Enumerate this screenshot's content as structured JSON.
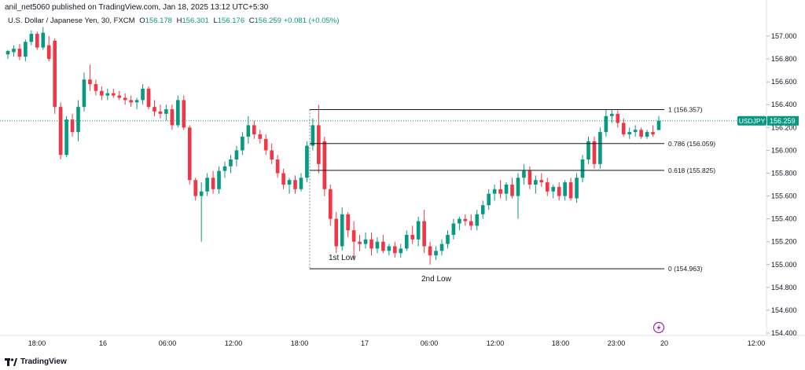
{
  "header": {
    "published": "anil_net5060 published on TradingView.com, Jan 18, 2025 13:12 UTC+5:30",
    "symbol": "U.S. Dollar / Japanese Yen, 30, FXCM",
    "open_label": "O",
    "open": "156.178",
    "high_label": "H",
    "high": "156.301",
    "low_label": "L",
    "low": "156.176",
    "close_label": "C",
    "close": "156.259",
    "change": "+0.081 (+0.05%)"
  },
  "footer": {
    "brand": "TradingView",
    "logo_icon": "tradingview-logo-icon"
  },
  "colors": {
    "up": "#089981",
    "down": "#f23645",
    "price_line": "#089981",
    "grid": "#f0f3fa",
    "fib": "#131722",
    "flash": "#9c27b0"
  },
  "chart_data": {
    "type": "candlestick",
    "symbol_badge": "USDJPY",
    "last_price": "156.259",
    "ylim": [
      154.4,
      157.1
    ],
    "y_ticks": [
      "157.000",
      "156.800",
      "156.600",
      "156.400",
      "156.200",
      "156.000",
      "155.800",
      "155.600",
      "155.400",
      "155.200",
      "155.000",
      "154.800",
      "154.600",
      "154.400"
    ],
    "x_ticks": [
      "18:00",
      "16",
      "06:00",
      "12:00",
      "18:00",
      "17",
      "06:00",
      "12:00",
      "18:00",
      "23:00",
      "20",
      "12:00"
    ],
    "fib_levels": [
      {
        "label": "1 (156.357)",
        "value": 156.357
      },
      {
        "label": "0.786 (156.059)",
        "value": 156.059
      },
      {
        "label": "0.618 (155.825)",
        "value": 155.825
      },
      {
        "label": "0 (154.963)",
        "value": 154.963
      }
    ],
    "annotations": [
      {
        "text": "1st Low",
        "price": 155.07
      },
      {
        "text": "2nd Low",
        "price": 154.87
      }
    ],
    "candles": [
      [
        156.84,
        156.88,
        156.8,
        156.87
      ],
      [
        156.86,
        156.92,
        156.82,
        156.89
      ],
      [
        156.89,
        156.93,
        156.79,
        156.82
      ],
      [
        156.82,
        156.97,
        156.78,
        156.95
      ],
      [
        156.95,
        157.05,
        156.92,
        157.02
      ],
      [
        157.02,
        157.04,
        156.88,
        156.9
      ],
      [
        156.9,
        157.08,
        156.88,
        157.03
      ],
      [
        156.92,
        157.0,
        156.78,
        156.8
      ],
      [
        156.96,
        156.98,
        156.32,
        156.38
      ],
      [
        156.38,
        156.42,
        155.92,
        155.96
      ],
      [
        155.96,
        156.3,
        155.94,
        156.27
      ],
      [
        156.27,
        156.32,
        156.12,
        156.16
      ],
      [
        156.16,
        156.44,
        156.08,
        156.38
      ],
      [
        156.38,
        156.68,
        156.34,
        156.62
      ],
      [
        156.62,
        156.75,
        156.52,
        156.58
      ],
      [
        156.58,
        156.62,
        156.48,
        156.52
      ],
      [
        156.52,
        156.56,
        156.44,
        156.48
      ],
      [
        156.48,
        156.54,
        156.44,
        156.5
      ],
      [
        156.5,
        156.54,
        156.46,
        156.48
      ],
      [
        156.48,
        156.52,
        156.44,
        156.46
      ],
      [
        156.46,
        156.5,
        156.4,
        156.44
      ],
      [
        156.44,
        156.48,
        156.38,
        156.42
      ],
      [
        156.42,
        156.46,
        156.36,
        156.44
      ],
      [
        156.44,
        156.58,
        156.4,
        156.54
      ],
      [
        156.54,
        156.56,
        156.36,
        156.38
      ],
      [
        156.38,
        156.44,
        156.3,
        156.34
      ],
      [
        156.34,
        156.4,
        156.28,
        156.32
      ],
      [
        156.32,
        156.4,
        156.26,
        156.36
      ],
      [
        156.36,
        156.4,
        156.18,
        156.22
      ],
      [
        156.22,
        156.48,
        156.2,
        156.44
      ],
      [
        156.44,
        156.48,
        156.18,
        156.2
      ],
      [
        156.2,
        156.22,
        155.7,
        155.74
      ],
      [
        155.74,
        155.76,
        155.56,
        155.6
      ],
      [
        155.6,
        155.72,
        155.2,
        155.64
      ],
      [
        155.64,
        155.8,
        155.6,
        155.76
      ],
      [
        155.76,
        155.82,
        155.62,
        155.66
      ],
      [
        155.66,
        155.86,
        155.62,
        155.82
      ],
      [
        155.82,
        155.9,
        155.76,
        155.86
      ],
      [
        155.86,
        155.96,
        155.8,
        155.92
      ],
      [
        155.92,
        156.04,
        155.86,
        156.0
      ],
      [
        156.0,
        156.16,
        155.96,
        156.12
      ],
      [
        156.12,
        156.3,
        156.06,
        156.22
      ],
      [
        156.22,
        156.26,
        156.1,
        156.14
      ],
      [
        156.14,
        156.18,
        156.06,
        156.1
      ],
      [
        156.1,
        156.14,
        155.96,
        156.0
      ],
      [
        156.0,
        156.06,
        155.88,
        155.92
      ],
      [
        155.92,
        155.96,
        155.76,
        155.8
      ],
      [
        155.8,
        155.84,
        155.66,
        155.7
      ],
      [
        155.7,
        155.76,
        155.62,
        155.74
      ],
      [
        155.74,
        155.78,
        155.62,
        155.66
      ],
      [
        155.66,
        155.8,
        155.64,
        155.76
      ],
      [
        155.76,
        156.08,
        155.72,
        156.04
      ],
      [
        156.04,
        156.28,
        156.0,
        156.22
      ],
      [
        156.22,
        156.4,
        155.8,
        155.88
      ],
      [
        156.08,
        156.12,
        155.6,
        155.66
      ],
      [
        155.66,
        155.7,
        155.34,
        155.4
      ],
      [
        155.4,
        155.46,
        155.1,
        155.16
      ],
      [
        155.16,
        155.5,
        155.12,
        155.44
      ],
      [
        155.44,
        155.46,
        155.24,
        155.3
      ],
      [
        155.3,
        155.38,
        155.04,
        155.2
      ],
      [
        155.2,
        155.26,
        155.12,
        155.18
      ],
      [
        155.18,
        155.28,
        155.14,
        155.22
      ],
      [
        155.22,
        155.28,
        155.08,
        155.14
      ],
      [
        155.14,
        155.24,
        155.1,
        155.2
      ],
      [
        155.2,
        155.26,
        155.1,
        155.12
      ],
      [
        155.12,
        155.18,
        155.08,
        155.16
      ],
      [
        155.16,
        155.2,
        155.06,
        155.1
      ],
      [
        155.1,
        155.18,
        155.06,
        155.14
      ],
      [
        155.14,
        155.3,
        155.12,
        155.26
      ],
      [
        155.26,
        155.34,
        155.18,
        155.22
      ],
      [
        155.22,
        155.42,
        155.16,
        155.38
      ],
      [
        155.38,
        155.48,
        155.1,
        155.16
      ],
      [
        155.16,
        155.2,
        155.0,
        155.08
      ],
      [
        155.08,
        155.16,
        155.04,
        155.12
      ],
      [
        155.12,
        155.22,
        155.08,
        155.18
      ],
      [
        155.18,
        155.3,
        155.14,
        155.26
      ],
      [
        155.26,
        155.4,
        155.22,
        155.36
      ],
      [
        155.36,
        155.42,
        155.3,
        155.4
      ],
      [
        155.4,
        155.44,
        155.34,
        155.38
      ],
      [
        155.38,
        155.44,
        155.3,
        155.34
      ],
      [
        155.34,
        155.48,
        155.3,
        155.44
      ],
      [
        155.44,
        155.56,
        155.4,
        155.52
      ],
      [
        155.52,
        155.66,
        155.48,
        155.62
      ],
      [
        155.62,
        155.7,
        155.56,
        155.66
      ],
      [
        155.66,
        155.74,
        155.58,
        155.62
      ],
      [
        155.62,
        155.72,
        155.56,
        155.7
      ],
      [
        155.7,
        155.76,
        155.58,
        155.6
      ],
      [
        155.6,
        155.8,
        155.4,
        155.76
      ],
      [
        155.76,
        155.88,
        155.7,
        155.82
      ],
      [
        155.82,
        155.86,
        155.66,
        155.7
      ],
      [
        155.7,
        155.78,
        155.62,
        155.74
      ],
      [
        155.74,
        155.8,
        155.68,
        155.72
      ],
      [
        155.72,
        155.76,
        155.6,
        155.64
      ],
      [
        155.64,
        155.7,
        155.58,
        155.68
      ],
      [
        155.68,
        155.72,
        155.56,
        155.6
      ],
      [
        155.6,
        155.74,
        155.56,
        155.72
      ],
      [
        155.72,
        155.76,
        155.56,
        155.58
      ],
      [
        155.58,
        155.8,
        155.54,
        155.76
      ],
      [
        155.76,
        155.96,
        155.72,
        155.92
      ],
      [
        155.92,
        156.12,
        155.88,
        156.08
      ],
      [
        156.08,
        156.12,
        155.84,
        155.88
      ],
      [
        155.88,
        156.2,
        155.84,
        156.16
      ],
      [
        156.16,
        156.36,
        156.12,
        156.3
      ],
      [
        156.3,
        156.36,
        156.24,
        156.32
      ],
      [
        156.32,
        156.35,
        156.2,
        156.24
      ],
      [
        156.24,
        156.28,
        156.12,
        156.14
      ],
      [
        156.14,
        156.2,
        156.1,
        156.16
      ],
      [
        156.16,
        156.22,
        156.12,
        156.18
      ],
      [
        156.18,
        156.2,
        156.1,
        156.12
      ],
      [
        156.12,
        156.18,
        156.1,
        156.16
      ],
      [
        156.16,
        156.22,
        156.12,
        156.14
      ],
      [
        156.178,
        156.301,
        156.176,
        156.259
      ]
    ]
  }
}
